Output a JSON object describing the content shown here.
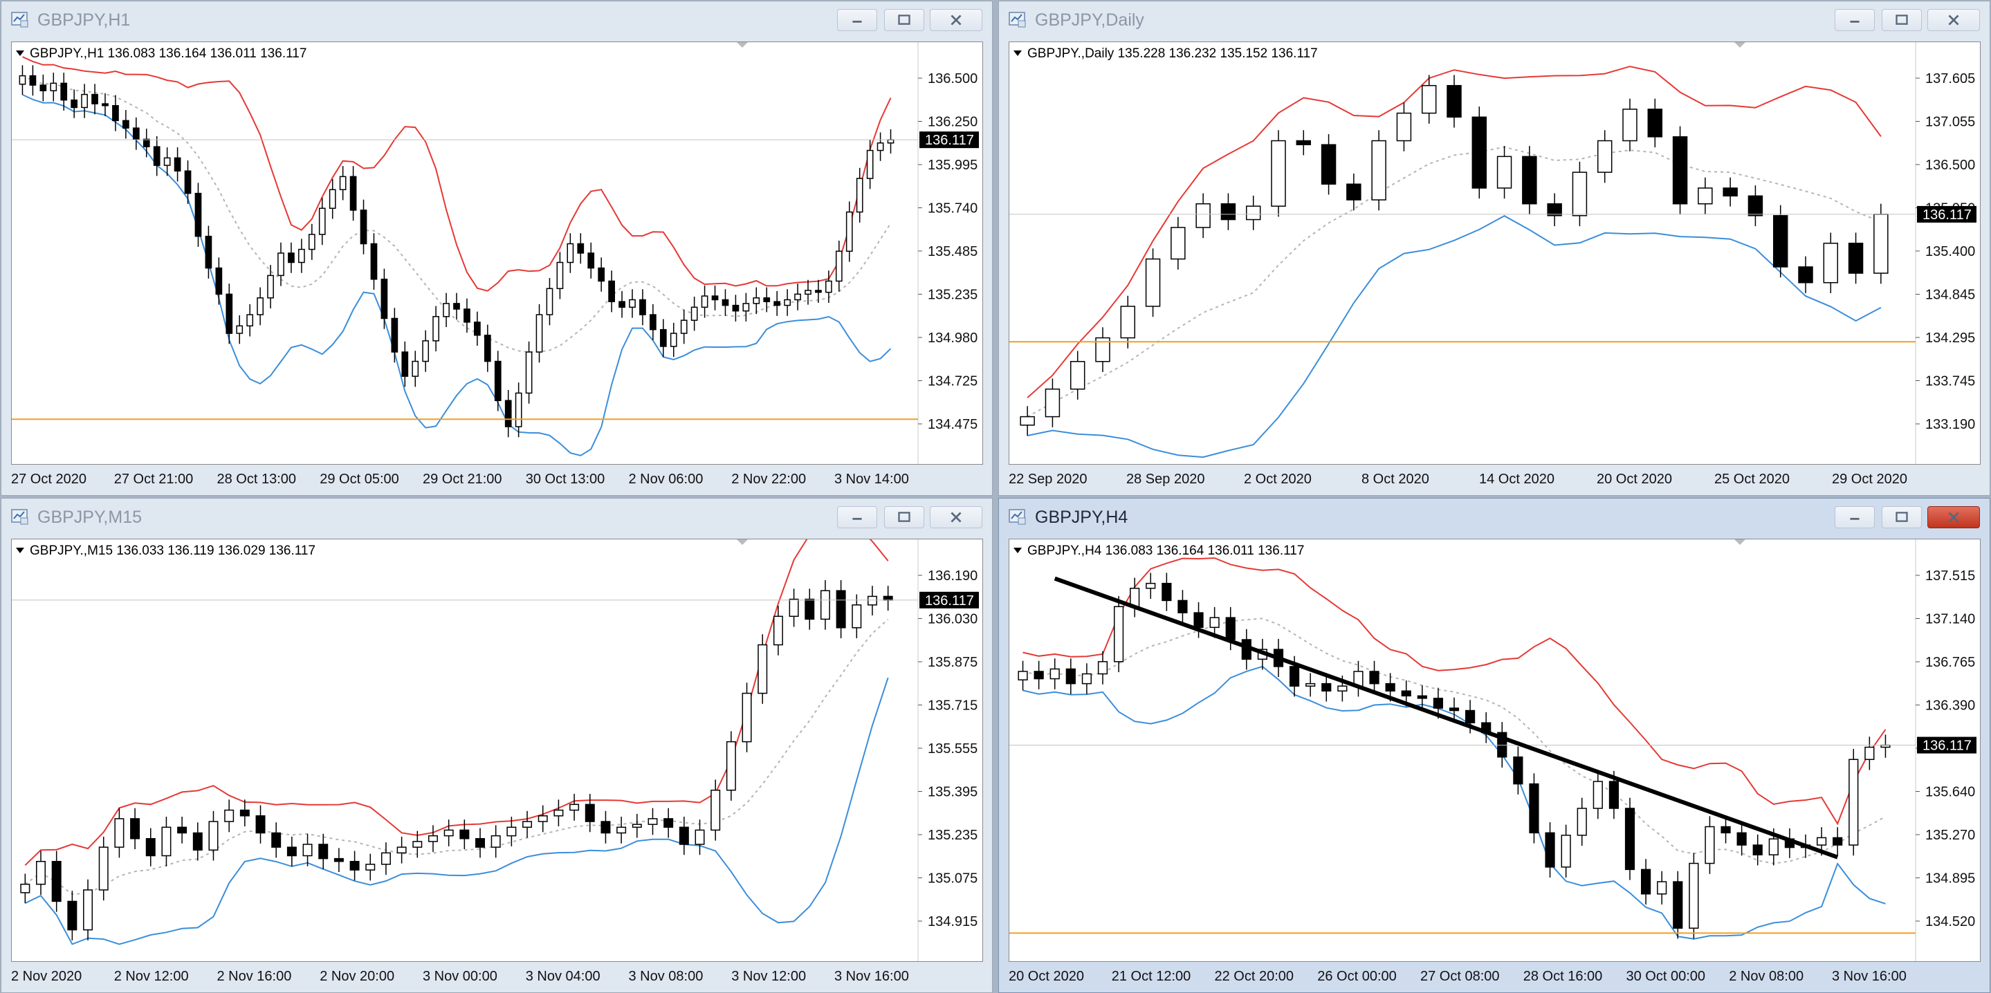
{
  "colors": {
    "upper_band": "#e53935",
    "lower_band": "#3a8edb",
    "middle_band": "#b4b4b4",
    "horizontal_level": "#f0a020",
    "trendline": "#000000",
    "bull_fill": "#ffffff",
    "bear_fill": "#000000",
    "price_tag_bg": "#000000"
  },
  "icons": {
    "window_icon": "chart-window-icon",
    "minimize": "minimize-icon",
    "maximize": "maximize-icon",
    "close": "close-icon",
    "dropdown": "triangle-down-icon"
  },
  "windows": [
    {
      "title": "GBPJPY,H1",
      "active": false,
      "info": "GBPJPY.,H1  136.083 136.164 136.011 136.117",
      "price_tag": "136.117",
      "price_levels": [
        "136.500",
        "136.250",
        "135.995",
        "135.740",
        "135.485",
        "135.235",
        "134.980",
        "134.725",
        "134.475"
      ],
      "time_labels": [
        "27 Oct 2020",
        "27 Oct 21:00",
        "28 Oct 13:00",
        "29 Oct 05:00",
        "29 Oct 21:00",
        "30 Oct 13:00",
        "2 Nov 06:00",
        "2 Nov 22:00",
        "3 Nov 14:00"
      ],
      "y_range": [
        134.38,
        136.64
      ],
      "current": 136.117,
      "hline": 134.62,
      "series": [
        136.46,
        136.41,
        136.38,
        136.42,
        136.33,
        136.29,
        136.36,
        136.31,
        136.3,
        136.22,
        136.18,
        136.12,
        136.08,
        135.98,
        136.02,
        135.95,
        135.83,
        135.6,
        135.43,
        135.29,
        135.08,
        135.12,
        135.18,
        135.27,
        135.39,
        135.51,
        135.46,
        135.53,
        135.61,
        135.75,
        135.85,
        135.92,
        135.74,
        135.56,
        135.37,
        135.16,
        134.98,
        134.85,
        134.93,
        135.04,
        135.17,
        135.24,
        135.21,
        135.14,
        135.07,
        134.93,
        134.72,
        134.58,
        134.76,
        134.98,
        135.18,
        135.32,
        135.46,
        135.56,
        135.51,
        135.43,
        135.36,
        135.25,
        135.22,
        135.26,
        135.18,
        135.1,
        135.01,
        135.08,
        135.15,
        135.22,
        135.28,
        135.26,
        135.23,
        135.2,
        135.24,
        135.27,
        135.25,
        135.23,
        135.26,
        135.29,
        135.31,
        135.3,
        135.36,
        135.52,
        135.73,
        135.91,
        136.06,
        136.1,
        136.117
      ]
    },
    {
      "title": "GBPJPY,Daily",
      "active": false,
      "info": "GBPJPY.,Daily  135.228 136.232 135.152 136.117",
      "price_tag": "136.117",
      "price_levels": [
        "137.605",
        "137.055",
        "136.500",
        "135.950",
        "135.400",
        "134.845",
        "134.295",
        "133.745",
        "133.190"
      ],
      "time_labels": [
        "22 Sep 2020",
        "28 Sep 2020",
        "2 Oct 2020",
        "8 Oct 2020",
        "14 Oct 2020",
        "20 Oct 2020",
        "25 Oct 2020",
        "29 Oct 2020"
      ],
      "y_range": [
        132.95,
        138.3
      ],
      "current": 136.117,
      "hline": 134.5,
      "series": [
        133.55,
        133.9,
        134.25,
        134.55,
        134.95,
        135.55,
        135.95,
        136.25,
        136.05,
        136.22,
        137.05,
        137.0,
        136.5,
        136.3,
        137.05,
        137.4,
        137.75,
        137.35,
        136.45,
        136.85,
        136.25,
        136.1,
        136.65,
        137.05,
        137.45,
        137.1,
        136.25,
        136.45,
        136.35,
        136.1,
        135.45,
        135.25,
        135.75,
        135.37,
        136.117
      ]
    },
    {
      "title": "GBPJPY,M15",
      "active": false,
      "info": "GBPJPY.,M15  136.033 136.119 136.029 136.117",
      "price_tag": "136.117",
      "price_levels": [
        "136.190",
        "136.030",
        "135.875",
        "135.715",
        "135.555",
        "135.395",
        "135.235",
        "135.075",
        "134.915"
      ],
      "time_labels": [
        "2 Nov 2020",
        "2 Nov 12:00",
        "2 Nov 16:00",
        "2 Nov 20:00",
        "3 Nov 00:00",
        "3 Nov 04:00",
        "3 Nov 08:00",
        "3 Nov 12:00",
        "3 Nov 16:00"
      ],
      "y_range": [
        134.85,
        136.33
      ],
      "current": 136.117,
      "hline": null,
      "series": [
        135.12,
        135.2,
        135.06,
        134.96,
        135.1,
        135.25,
        135.35,
        135.28,
        135.22,
        135.32,
        135.3,
        135.24,
        135.34,
        135.38,
        135.36,
        135.3,
        135.25,
        135.22,
        135.26,
        135.21,
        135.2,
        135.17,
        135.19,
        135.23,
        135.25,
        135.27,
        135.29,
        135.31,
        135.28,
        135.25,
        135.29,
        135.32,
        135.34,
        135.36,
        135.38,
        135.4,
        135.34,
        135.3,
        135.32,
        135.33,
        135.35,
        135.32,
        135.26,
        135.31,
        135.45,
        135.62,
        135.79,
        135.96,
        136.06,
        136.12,
        136.05,
        136.15,
        136.02,
        136.1,
        136.13,
        136.117
      ]
    },
    {
      "title": "GBPJPY,H4",
      "active": true,
      "info": "GBPJPY.,H4  136.083 136.164 136.011 136.117",
      "price_tag": "136.117",
      "price_levels": [
        "137.515",
        "137.140",
        "136.765",
        "136.390",
        "136.015",
        "135.640",
        "135.270",
        "134.895",
        "134.520"
      ],
      "time_labels": [
        "20 Oct 2020",
        "21 Oct 12:00",
        "22 Oct 20:00",
        "26 Oct 00:00",
        "27 Oct 08:00",
        "28 Oct 16:00",
        "30 Oct 00:00",
        "2 Nov 08:00",
        "3 Nov 16:00"
      ],
      "y_range": [
        134.35,
        137.8
      ],
      "current": 136.117,
      "hline": 134.58,
      "series": [
        136.72,
        136.66,
        136.74,
        136.62,
        136.7,
        136.8,
        137.25,
        137.4,
        137.44,
        137.3,
        137.2,
        137.08,
        137.16,
        136.98,
        136.82,
        136.9,
        136.76,
        136.6,
        136.62,
        136.56,
        136.6,
        136.72,
        136.62,
        136.56,
        136.52,
        136.5,
        136.42,
        136.4,
        136.3,
        136.22,
        136.02,
        135.8,
        135.4,
        135.12,
        135.38,
        135.6,
        135.82,
        135.6,
        135.1,
        134.9,
        135.0,
        134.62,
        135.15,
        135.45,
        135.4,
        135.3,
        135.22,
        135.35,
        135.28,
        135.3,
        135.36,
        135.3,
        136.0,
        136.1,
        136.117
      ],
      "trendline": {
        "from": [
          2,
          137.48
        ],
        "to": [
          51,
          135.2
        ]
      }
    }
  ]
}
